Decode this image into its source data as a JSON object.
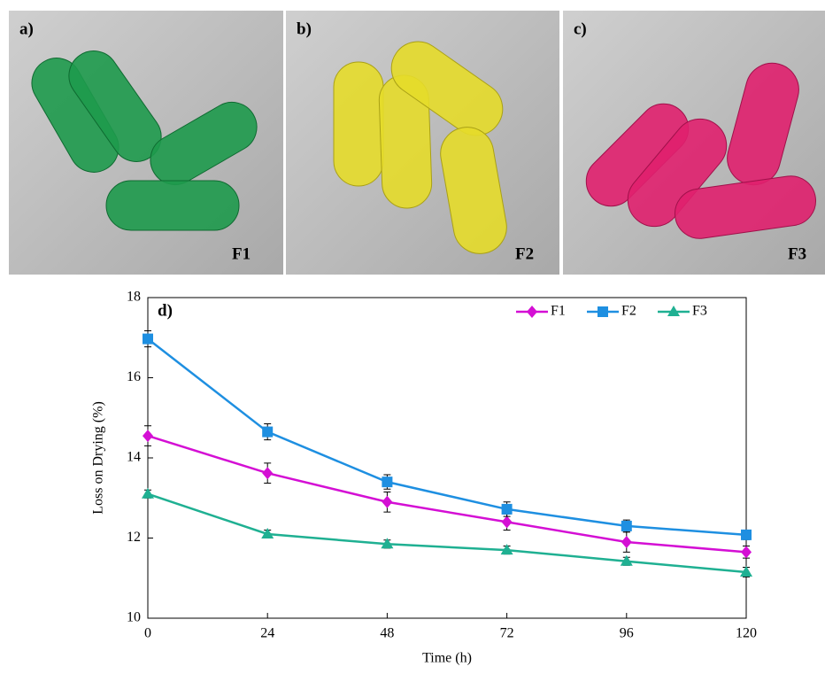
{
  "panels": [
    {
      "label": "a)",
      "caption": "F1"
    },
    {
      "label": "b)",
      "caption": "F2"
    },
    {
      "label": "c)",
      "caption": "F3"
    }
  ],
  "chart_data": {
    "type": "line",
    "panel_label": "d)",
    "x_label": "Time (h)",
    "y_label": "Loss on Drying (%)",
    "x": [
      0,
      24,
      48,
      72,
      96,
      120
    ],
    "xlim": [
      0,
      120
    ],
    "xticks": [
      0,
      24,
      48,
      72,
      96,
      120
    ],
    "ylim": [
      10,
      18
    ],
    "yticks": [
      10,
      12,
      14,
      16,
      18
    ],
    "grid": false,
    "legend": "top-right",
    "series": [
      {
        "name": "F1",
        "color": "#d40fd4",
        "marker": "diamond",
        "values": [
          14.55,
          13.62,
          12.9,
          12.4,
          11.9,
          11.65
        ],
        "errors": [
          0.25,
          0.25,
          0.25,
          0.2,
          0.25,
          0.15
        ]
      },
      {
        "name": "F2",
        "color": "#1e8fe1",
        "marker": "square",
        "values": [
          16.97,
          14.65,
          13.4,
          12.72,
          12.3,
          12.08
        ],
        "errors": [
          0.2,
          0.2,
          0.18,
          0.18,
          0.15,
          0.12
        ]
      },
      {
        "name": "F3",
        "color": "#1fb092",
        "marker": "triangle",
        "values": [
          13.1,
          12.1,
          11.85,
          11.7,
          11.42,
          11.15
        ],
        "errors": [
          0.1,
          0.1,
          0.1,
          0.1,
          0.1,
          0.12
        ]
      }
    ]
  }
}
